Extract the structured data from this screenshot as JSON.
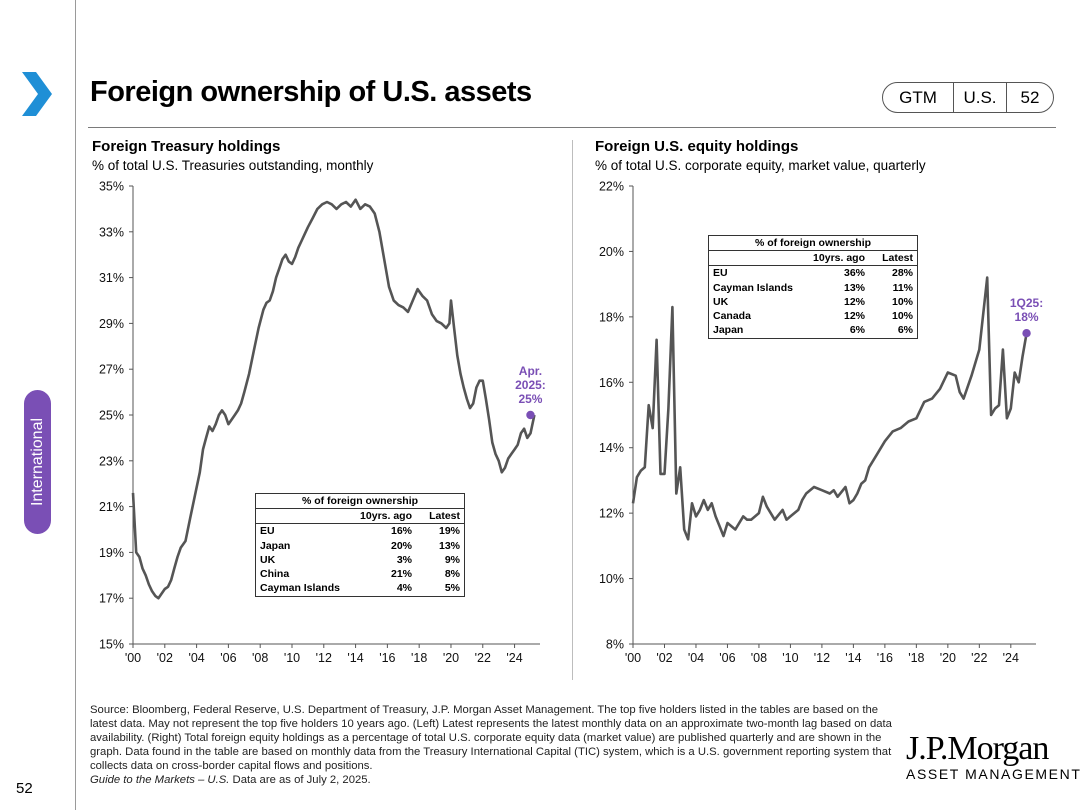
{
  "header": {
    "title": "Foreign ownership of U.S. assets",
    "tags": [
      "GTM",
      "U.S.",
      "52"
    ]
  },
  "section_tab": "International",
  "page_number": "52",
  "colors": {
    "accent": "#7a4fb5",
    "line": "#555555",
    "rule": "#9a9a9a"
  },
  "icons": {
    "nav": "chevron-right-icon"
  },
  "chart_data": [
    {
      "type": "line",
      "title": "Foreign Treasury holdings",
      "subtitle": "% of total U.S. Treasuries outstanding, monthly",
      "ylim": [
        15,
        35
      ],
      "yticks": [
        15,
        17,
        19,
        21,
        23,
        25,
        27,
        29,
        31,
        33,
        35
      ],
      "ytick_labels": [
        "15%",
        "17%",
        "19%",
        "21%",
        "23%",
        "25%",
        "27%",
        "29%",
        "31%",
        "33%",
        "35%"
      ],
      "xlim": [
        2000,
        2025.6
      ],
      "xticks": [
        2000,
        2002,
        2004,
        2006,
        2008,
        2010,
        2012,
        2014,
        2016,
        2018,
        2020,
        2022,
        2024
      ],
      "xtick_labels": [
        "'00",
        "'02",
        "'04",
        "'06",
        "'08",
        "'10",
        "'12",
        "'14",
        "'16",
        "'18",
        "'20",
        "'22",
        "'24"
      ],
      "series": [
        {
          "name": "% of foreign ownership",
          "x": [
            2000.0,
            2000.2,
            2000.4,
            2000.6,
            2000.8,
            2001.0,
            2001.2,
            2001.4,
            2001.6,
            2001.8,
            2002.0,
            2002.2,
            2002.4,
            2002.6,
            2002.8,
            2003.0,
            2003.3,
            2003.6,
            2003.9,
            2004.2,
            2004.4,
            2004.6,
            2004.8,
            2005.0,
            2005.2,
            2005.4,
            2005.6,
            2005.8,
            2006.0,
            2006.2,
            2006.4,
            2006.6,
            2006.8,
            2007.0,
            2007.3,
            2007.6,
            2007.9,
            2008.2,
            2008.4,
            2008.6,
            2008.8,
            2009.0,
            2009.2,
            2009.4,
            2009.6,
            2009.8,
            2010.0,
            2010.2,
            2010.4,
            2010.6,
            2010.8,
            2011.0,
            2011.3,
            2011.6,
            2011.9,
            2012.2,
            2012.5,
            2012.8,
            2013.1,
            2013.4,
            2013.7,
            2014.0,
            2014.3,
            2014.6,
            2014.9,
            2015.2,
            2015.5,
            2015.8,
            2016.1,
            2016.4,
            2016.7,
            2017.0,
            2017.3,
            2017.6,
            2017.9,
            2018.2,
            2018.5,
            2018.8,
            2019.1,
            2019.4,
            2019.7,
            2019.9,
            2020.0,
            2020.2,
            2020.4,
            2020.6,
            2020.8,
            2021.0,
            2021.2,
            2021.4,
            2021.6,
            2021.8,
            2022.0,
            2022.2,
            2022.4,
            2022.6,
            2022.8,
            2023.0,
            2023.2,
            2023.4,
            2023.6,
            2023.8,
            2024.0,
            2024.2,
            2024.4,
            2024.6,
            2024.8,
            2025.0,
            2025.25
          ],
          "values": [
            21.6,
            19.0,
            18.8,
            18.3,
            18.0,
            17.6,
            17.3,
            17.1,
            17.0,
            17.2,
            17.4,
            17.5,
            17.8,
            18.3,
            18.8,
            19.2,
            19.5,
            20.5,
            21.5,
            22.5,
            23.5,
            24.0,
            24.5,
            24.3,
            24.6,
            25.0,
            25.2,
            25.0,
            24.6,
            24.8,
            25.0,
            25.2,
            25.5,
            26.0,
            26.8,
            27.8,
            28.8,
            29.6,
            29.9,
            30.0,
            30.4,
            31.0,
            31.4,
            31.8,
            32.0,
            31.7,
            31.6,
            31.9,
            32.3,
            32.6,
            32.9,
            33.2,
            33.6,
            34.0,
            34.2,
            34.3,
            34.2,
            34.0,
            34.2,
            34.3,
            34.1,
            34.4,
            34.0,
            34.2,
            34.1,
            33.8,
            33.0,
            31.8,
            30.6,
            30.0,
            29.8,
            29.7,
            29.5,
            30.0,
            30.5,
            30.2,
            30.0,
            29.4,
            29.1,
            29.0,
            28.8,
            29.0,
            30.0,
            28.8,
            27.6,
            26.8,
            26.2,
            25.7,
            25.3,
            25.5,
            26.2,
            26.5,
            26.5,
            25.7,
            24.8,
            23.8,
            23.3,
            23.0,
            22.5,
            22.7,
            23.1,
            23.3,
            23.5,
            23.7,
            24.2,
            24.4,
            24.0,
            24.2,
            25.0
          ]
        }
      ],
      "annotation": {
        "lines": [
          "Apr.",
          "2025:",
          "25%"
        ],
        "x": 2025.0,
        "y": 25.0
      },
      "table": {
        "title": "% of foreign ownership",
        "columns": [
          "10yrs. ago",
          "Latest"
        ],
        "rows": [
          {
            "name": "EU",
            "ago": "16%",
            "latest": "19%"
          },
          {
            "name": "Japan",
            "ago": "20%",
            "latest": "13%"
          },
          {
            "name": "UK",
            "ago": "3%",
            "latest": "9%"
          },
          {
            "name": "China",
            "ago": "21%",
            "latest": "8%"
          },
          {
            "name": "Cayman Islands",
            "ago": "4%",
            "latest": "5%"
          }
        ]
      }
    },
    {
      "type": "line",
      "title": "Foreign U.S. equity holdings",
      "subtitle": "% of total U.S. corporate equity, market value, quarterly",
      "ylim": [
        8,
        22
      ],
      "yticks": [
        8,
        10,
        12,
        14,
        16,
        18,
        20,
        22
      ],
      "ytick_labels": [
        "8%",
        "10%",
        "12%",
        "14%",
        "16%",
        "18%",
        "20%",
        "22%"
      ],
      "xlim": [
        2000,
        2025.6
      ],
      "xticks": [
        2000,
        2002,
        2004,
        2006,
        2008,
        2010,
        2012,
        2014,
        2016,
        2018,
        2020,
        2022,
        2024
      ],
      "xtick_labels": [
        "'00",
        "'02",
        "'04",
        "'06",
        "'08",
        "'10",
        "'12",
        "'14",
        "'16",
        "'18",
        "'20",
        "'22",
        "'24"
      ],
      "series": [
        {
          "name": "% of foreign ownership",
          "x": [
            2000.0,
            2000.25,
            2000.5,
            2000.75,
            2001.0,
            2001.25,
            2001.5,
            2001.75,
            2002.0,
            2002.25,
            2002.5,
            2002.75,
            2003.0,
            2003.25,
            2003.5,
            2003.75,
            2004.0,
            2004.25,
            2004.5,
            2004.75,
            2005.0,
            2005.25,
            2005.5,
            2005.75,
            2006.0,
            2006.5,
            2007.0,
            2007.25,
            2007.5,
            2008.0,
            2008.25,
            2008.5,
            2008.75,
            2009.0,
            2009.5,
            2009.75,
            2010.0,
            2010.5,
            2010.75,
            2011.0,
            2011.5,
            2012.0,
            2012.5,
            2012.75,
            2013.0,
            2013.5,
            2013.75,
            2014.0,
            2014.25,
            2014.5,
            2014.75,
            2015.0,
            2015.5,
            2016.0,
            2016.5,
            2017.0,
            2017.5,
            2018.0,
            2018.5,
            2019.0,
            2019.5,
            2020.0,
            2020.5,
            2020.75,
            2021.0,
            2021.5,
            2022.0,
            2022.5,
            2022.75,
            2023.0,
            2023.25,
            2023.5,
            2023.75,
            2024.0,
            2024.25,
            2024.5,
            2024.75,
            2025.0
          ],
          "values": [
            12.3,
            13.1,
            13.3,
            13.4,
            15.3,
            14.6,
            17.3,
            13.2,
            13.2,
            15.2,
            18.3,
            12.6,
            13.4,
            11.5,
            11.2,
            12.3,
            11.9,
            12.1,
            12.4,
            12.1,
            12.3,
            11.9,
            11.6,
            11.3,
            11.7,
            11.5,
            11.9,
            11.8,
            11.8,
            12.0,
            12.5,
            12.2,
            12.0,
            11.8,
            12.1,
            11.8,
            11.9,
            12.1,
            12.4,
            12.6,
            12.8,
            12.7,
            12.6,
            12.7,
            12.5,
            12.8,
            12.3,
            12.4,
            12.6,
            12.9,
            13.0,
            13.4,
            13.8,
            14.2,
            14.5,
            14.6,
            14.8,
            14.9,
            15.4,
            15.5,
            15.8,
            16.3,
            16.2,
            15.7,
            15.5,
            16.2,
            17.0,
            19.2,
            15.0,
            15.2,
            15.3,
            17.0,
            14.9,
            15.2,
            16.3,
            16.0,
            16.8,
            17.5
          ]
        }
      ],
      "annotation": {
        "lines": [
          "1Q25:",
          "18%"
        ],
        "x": 2025.0,
        "y": 17.5
      },
      "table": {
        "title": "% of foreign ownership",
        "columns": [
          "10yrs. ago",
          "Latest"
        ],
        "rows": [
          {
            "name": "EU",
            "ago": "36%",
            "latest": "28%"
          },
          {
            "name": "Cayman Islands",
            "ago": "13%",
            "latest": "11%"
          },
          {
            "name": "UK",
            "ago": "12%",
            "latest": "10%"
          },
          {
            "name": "Canada",
            "ago": "12%",
            "latest": "10%"
          },
          {
            "name": "Japan",
            "ago": "6%",
            "latest": "6%"
          }
        ]
      }
    }
  ],
  "footnote": {
    "source": "Source: Bloomberg, Federal Reserve, U.S. Department of Treasury, J.P. Morgan Asset Management. The top five holders listed in the tables are based on the latest data. May not represent the top five holders 10 years ago. (Left) Latest represents the latest monthly data on an approximate two-month lag based on data availability. (Right) Total foreign equity holdings as a percentage of total U.S. corporate equity data (market value) are published quarterly and are shown in the graph. Data found in the table are based on monthly data from the Treasury International Capital (TIC) system, which is a U.S. government reporting system that collects data on cross-border capital flows and positions.",
    "guide_italic": "Guide to the Markets – U.S.",
    "guide_rest": " Data are as of July 2, 2025."
  },
  "logo": {
    "line1": "J.P.Morgan",
    "line2": "ASSET MANAGEMENT"
  }
}
